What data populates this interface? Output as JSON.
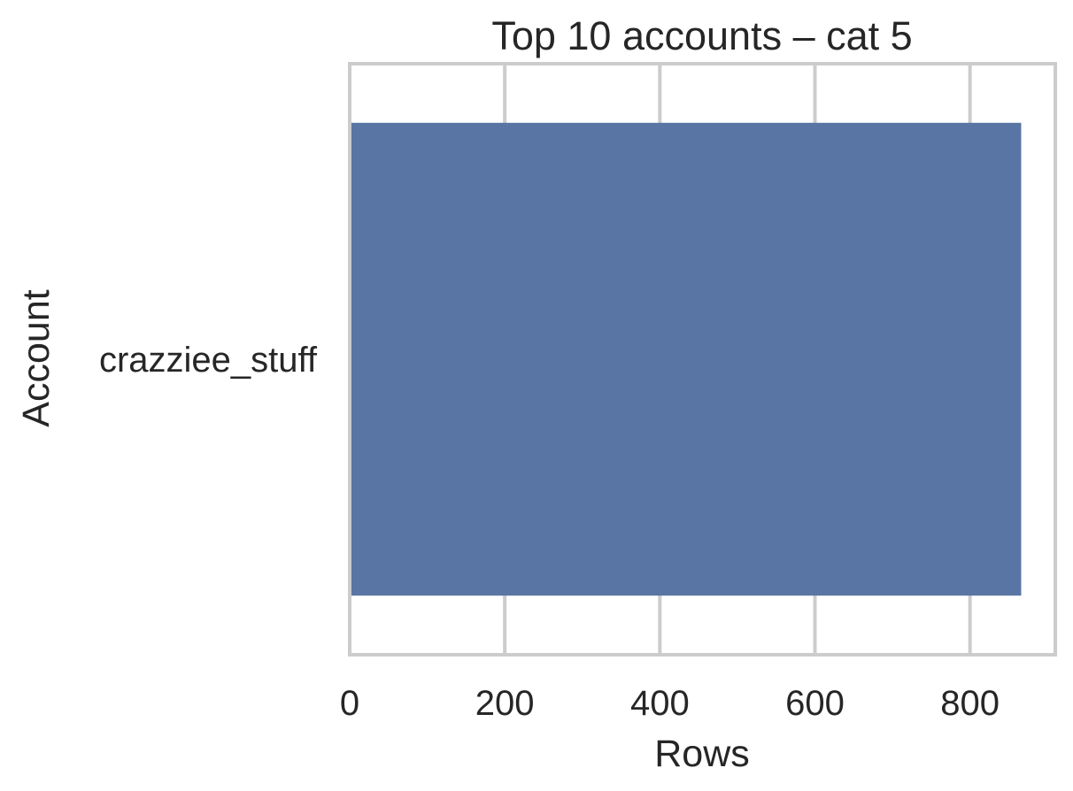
{
  "chart_data": {
    "type": "bar",
    "orientation": "horizontal",
    "title": "Top 10 accounts – cat 5",
    "xlabel": "Rows",
    "ylabel": "Account",
    "categories": [
      "crazziee_stuff"
    ],
    "values": [
      866
    ],
    "xlim": [
      0,
      910
    ],
    "xticks": [
      0,
      200,
      400,
      600,
      800
    ],
    "grid": "x",
    "legend": "none",
    "colors": {
      "bar": "#5975a4",
      "grid": "#cccccc",
      "frame": "#cccccc",
      "text": "#262626"
    }
  }
}
